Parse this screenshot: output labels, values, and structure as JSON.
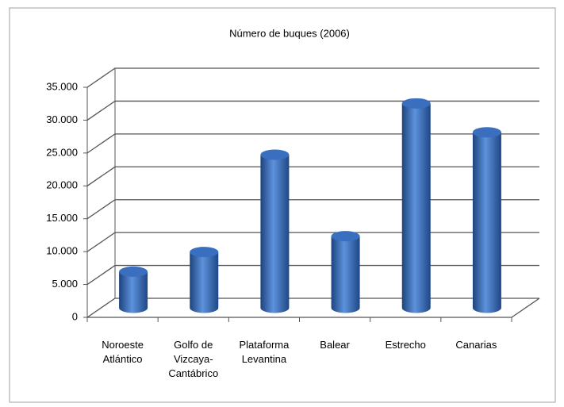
{
  "chart_data": {
    "type": "bar",
    "title": "Número de buques (2006)",
    "categories": [
      "Noroeste Atlántico",
      "Golfo de Vizcaya-Cantábrico",
      "Plataforma Levantina",
      "Balear",
      "Estrecho",
      "Canarias"
    ],
    "values": [
      5500,
      8500,
      23300,
      10900,
      31100,
      26700
    ],
    "color": "#2f62b0",
    "ylim": [
      0,
      35000
    ],
    "yticks": [
      0,
      {
        "value": 5000,
        "label": "5.000"
      },
      {
        "value": 10000,
        "label": "10.000"
      },
      {
        "value": 15000,
        "label": "15.000"
      },
      {
        "value": 20000,
        "label": "20.000"
      },
      {
        "value": 25000,
        "label": "25.000"
      },
      {
        "value": 30000,
        "label": "30.000"
      },
      {
        "value": 35000,
        "label": "35.000"
      }
    ],
    "grid": true
  }
}
